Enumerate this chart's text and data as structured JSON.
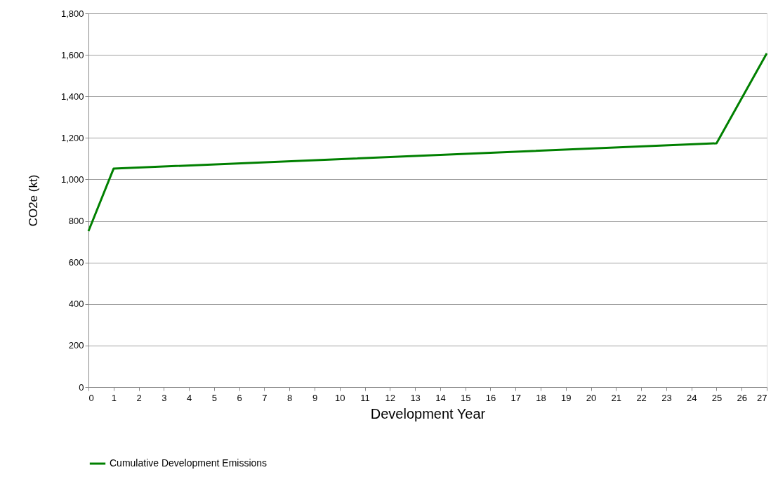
{
  "chart_data": {
    "type": "line",
    "xlabel": "Development Year",
    "ylabel": "CO2e (kt)",
    "x": [
      0,
      1,
      25,
      27
    ],
    "series": [
      {
        "name": "Cumulative Development Emissions",
        "color": "#008000",
        "values": [
          751,
          1052,
          1174,
          1607
        ]
      }
    ],
    "xlim": [
      0,
      27
    ],
    "xticks": [
      0,
      1,
      2,
      3,
      4,
      5,
      6,
      7,
      8,
      9,
      10,
      11,
      12,
      13,
      14,
      15,
      16,
      17,
      18,
      19,
      20,
      21,
      22,
      23,
      24,
      25,
      26,
      27
    ],
    "ylim": [
      0,
      1800
    ],
    "yticks": [
      {
        "value": 0,
        "label": "0"
      },
      {
        "value": 200,
        "label": "200"
      },
      {
        "value": 400,
        "label": "400"
      },
      {
        "value": 600,
        "label": "600"
      },
      {
        "value": 800,
        "label": "800"
      },
      {
        "value": 1000,
        "label": "1,000"
      },
      {
        "value": 1200,
        "label": "1,200"
      },
      {
        "value": 1400,
        "label": "1,400"
      },
      {
        "value": 1600,
        "label": "1,600"
      },
      {
        "value": 1800,
        "label": "1,800"
      }
    ],
    "grid": "y",
    "legend": "bottom",
    "marker": "none",
    "line_style": "solid"
  }
}
